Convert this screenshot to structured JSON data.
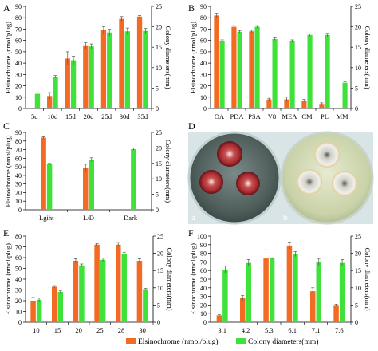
{
  "colors": {
    "orange": "#f36a22",
    "green": "#3fe23a",
    "error": "#555555",
    "axis": "#000000"
  },
  "legend": {
    "orange_label": "Elsinochrome (nmol/plug)",
    "green_label": "Colony diameters(mm)"
  },
  "chart_data": [
    {
      "type": "bar",
      "panel": "A",
      "categories": [
        "5d",
        "10d",
        "15d",
        "20d",
        "25d",
        "30d",
        "35d"
      ],
      "ylabel": "Elsinochrome (nmol/plug)",
      "y2label": "Colony diameters(mm)",
      "ylim": [
        0,
        90
      ],
      "y2lim": [
        0,
        25
      ],
      "yticks": [
        0,
        10,
        20,
        30,
        40,
        50,
        60,
        70,
        80,
        90
      ],
      "y2ticks": [
        0,
        5,
        10,
        15,
        20,
        25
      ],
      "series": [
        {
          "axis": "left",
          "color": "orange",
          "values": [
            null,
            11,
            44,
            55,
            69,
            79,
            81
          ],
          "errors": [
            0,
            3,
            6,
            3,
            3,
            2,
            1
          ]
        },
        {
          "axis": "right",
          "color": "green",
          "values": [
            3.6,
            7.8,
            11.8,
            15.2,
            18.6,
            18.9,
            19.0
          ],
          "errors": [
            0,
            0.3,
            1.0,
            0.6,
            0.8,
            0.8,
            0.6
          ]
        }
      ]
    },
    {
      "type": "bar",
      "panel": "B",
      "categories": [
        "OA",
        "PDA",
        "PSA",
        "V8",
        "MEA",
        "CM",
        "PL",
        "MM"
      ],
      "ylabel": "Elsinochrome (nmol/plug)",
      "y2label": "Colony diameters(mm)",
      "ylim": [
        0,
        90
      ],
      "y2lim": [
        0,
        25
      ],
      "yticks": [
        0,
        10,
        20,
        30,
        40,
        50,
        60,
        70,
        80,
        90
      ],
      "y2ticks": [
        0,
        5,
        10,
        15,
        20,
        25
      ],
      "series": [
        {
          "axis": "left",
          "color": "orange",
          "values": [
            82,
            72,
            68,
            8,
            8,
            7,
            4,
            null
          ],
          "errors": [
            2,
            1,
            1,
            1,
            2,
            1,
            1,
            0
          ]
        },
        {
          "axis": "right",
          "color": "green",
          "values": [
            16.5,
            18.8,
            20.0,
            17.0,
            16.5,
            18.0,
            18.0,
            6.3
          ],
          "errors": [
            0.3,
            0.3,
            0.3,
            0.3,
            0.3,
            0.3,
            0.4,
            0.2
          ]
        }
      ]
    },
    {
      "type": "bar",
      "panel": "C",
      "categories": [
        "Lgiht",
        "L/D",
        "Dark"
      ],
      "ylabel": "Elsinochrome (nmol/plug)",
      "y2label": "Colony diameters(mm)",
      "ylim": [
        0,
        90
      ],
      "y2lim": [
        0,
        25
      ],
      "yticks": [
        0,
        10,
        20,
        30,
        40,
        50,
        60,
        70,
        80,
        90
      ],
      "y2ticks": [
        0,
        5,
        10,
        15,
        20,
        25
      ],
      "series": [
        {
          "axis": "left",
          "color": "orange",
          "values": [
            84,
            49,
            null
          ],
          "errors": [
            1,
            4,
            0
          ]
        },
        {
          "axis": "right",
          "color": "green",
          "values": [
            14.7,
            16.2,
            19.6
          ],
          "errors": [
            0.3,
            0.6,
            0.4
          ]
        }
      ]
    },
    {
      "type": "bar",
      "panel": "E",
      "categories": [
        "10",
        "15",
        "20",
        "25",
        "28",
        "30"
      ],
      "ylabel": "Elsinochrome (nmol/plug)",
      "y2label": "Colony diameters(mm)",
      "ylim": [
        0,
        80
      ],
      "y2lim": [
        0,
        25
      ],
      "yticks": [
        0,
        10,
        20,
        30,
        40,
        50,
        60,
        70,
        80
      ],
      "y2ticks": [
        0,
        5,
        10,
        15,
        20,
        25
      ],
      "series": [
        {
          "axis": "left",
          "color": "orange",
          "values": [
            20,
            33,
            57,
            72,
            72,
            57
          ],
          "errors": [
            3,
            1,
            2,
            1,
            2,
            2
          ]
        },
        {
          "axis": "right",
          "color": "green",
          "values": [
            6.5,
            8.8,
            16.5,
            18.1,
            19.9,
            9.6
          ],
          "errors": [
            0.5,
            0.3,
            0.4,
            0.5,
            0.4,
            0.2
          ]
        }
      ]
    },
    {
      "type": "bar",
      "panel": "F",
      "categories": [
        "3.1",
        "4.2",
        "5.3",
        "6.1",
        "7.1",
        "7.6"
      ],
      "ylabel": "Elsinochrome (nmol/plug)",
      "y2label": "Colony diameters(mm)",
      "ylim": [
        0,
        100
      ],
      "y2lim": [
        0,
        25
      ],
      "yticks": [
        0,
        10,
        20,
        30,
        40,
        50,
        60,
        70,
        80,
        90,
        100
      ],
      "y2ticks": [
        0,
        5,
        10,
        15,
        20,
        25
      ],
      "series": [
        {
          "axis": "left",
          "color": "orange",
          "values": [
            8,
            28,
            74,
            89,
            36,
            20
          ],
          "errors": [
            1,
            3,
            10,
            4,
            4,
            1
          ]
        },
        {
          "axis": "right",
          "color": "green",
          "values": [
            15.3,
            17.2,
            18.5,
            19.8,
            17.5,
            17.2
          ],
          "errors": [
            1.0,
            1.0,
            0.2,
            0.7,
            1.0,
            1.0
          ]
        }
      ]
    }
  ],
  "photo": {
    "panel": "D",
    "sub_labels": [
      "a",
      "b"
    ]
  }
}
